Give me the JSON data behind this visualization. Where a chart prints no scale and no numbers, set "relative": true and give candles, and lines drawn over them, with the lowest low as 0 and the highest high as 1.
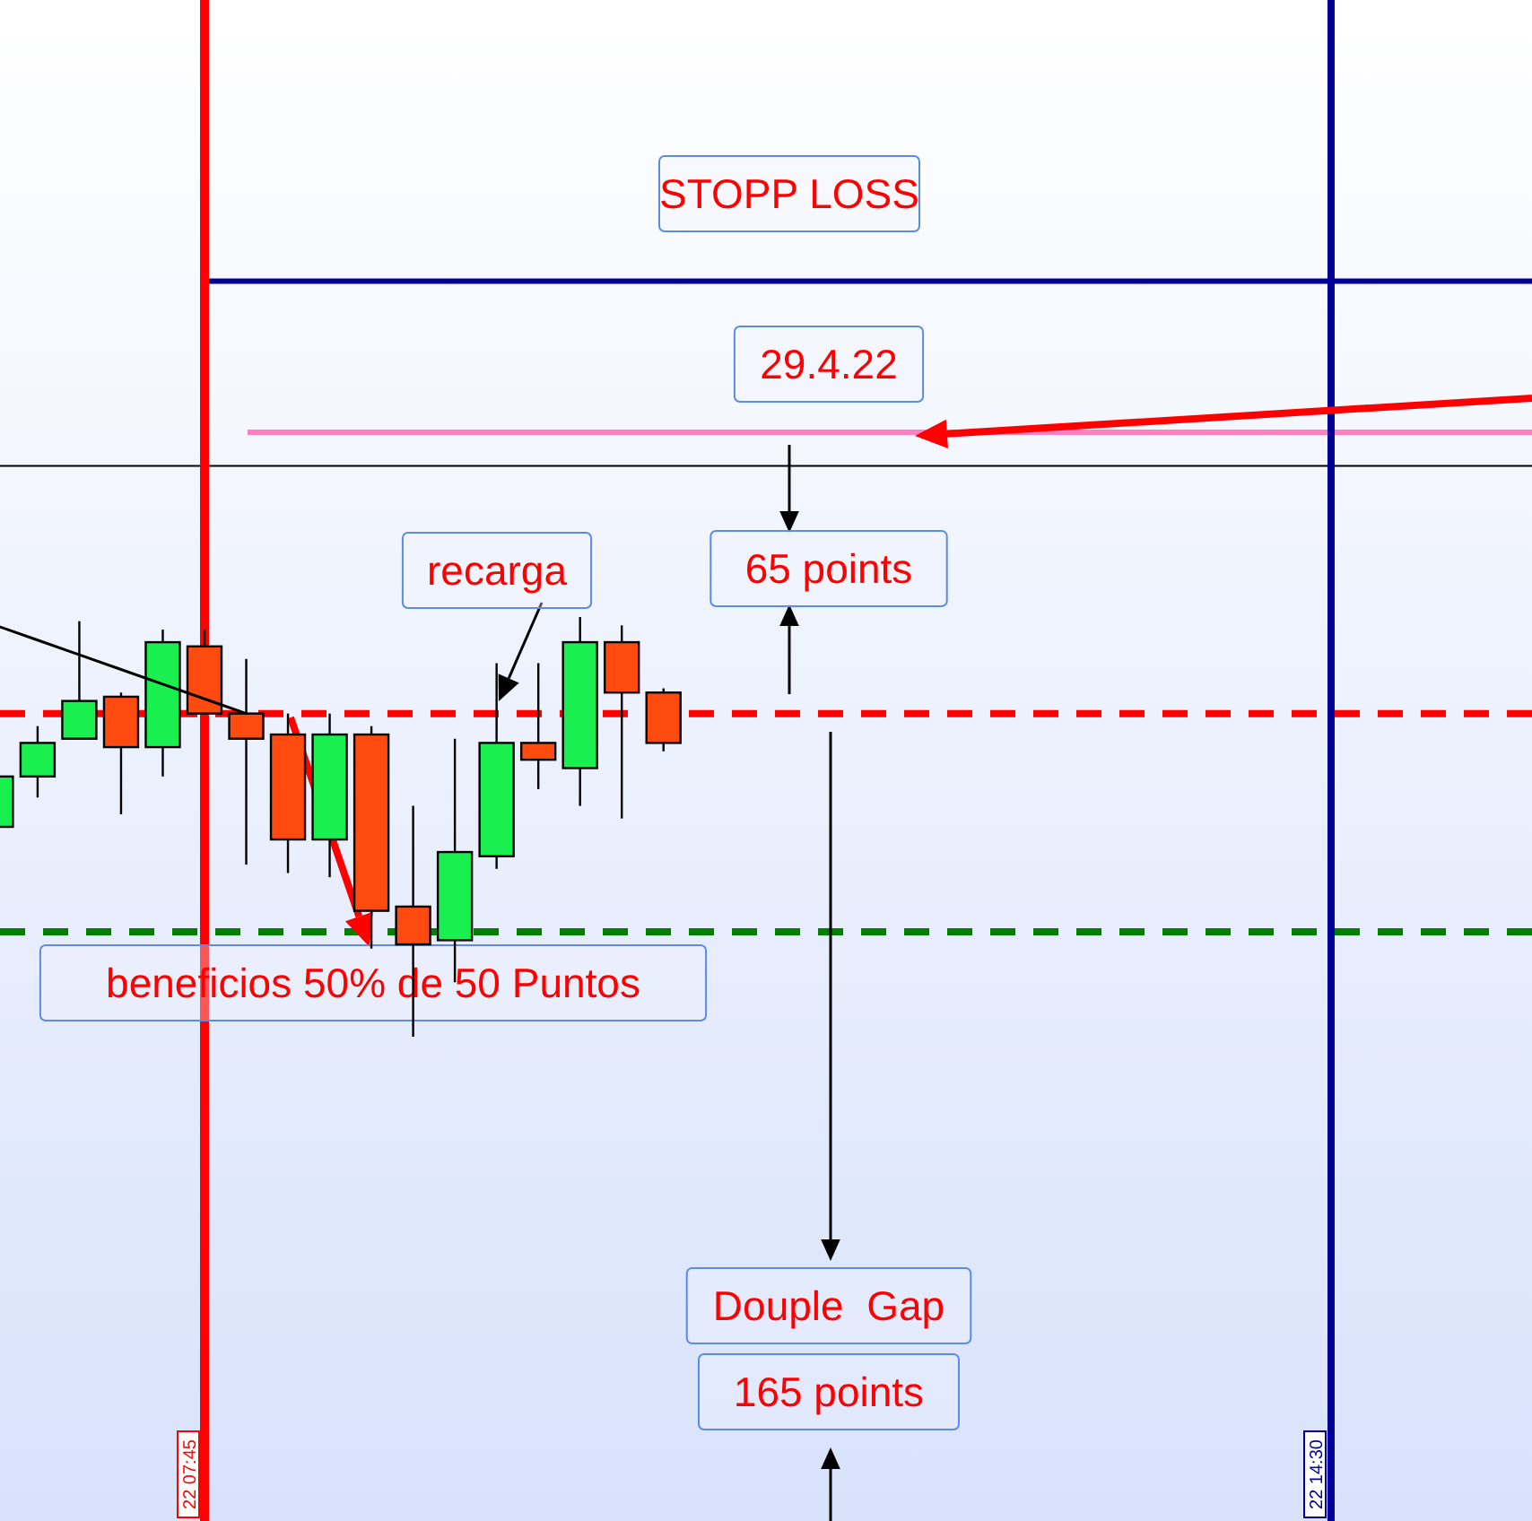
{
  "chart_data": {
    "type": "candlestick",
    "relative": true,
    "categories": [
      null,
      null,
      null,
      null,
      null,
      null,
      null,
      null,
      null,
      null,
      null,
      null,
      null,
      null,
      null,
      null,
      null
    ],
    "ohlc": [
      [
        0.5,
        0.62,
        0.5,
        0.62
      ],
      [
        0.62,
        0.74,
        0.57,
        0.7
      ],
      [
        0.71,
        0.99,
        0.71,
        0.8
      ],
      [
        0.81,
        0.82,
        0.53,
        0.69
      ],
      [
        0.69,
        0.97,
        0.62,
        0.94
      ],
      [
        0.93,
        0.97,
        0.77,
        0.77
      ],
      [
        0.77,
        0.9,
        0.41,
        0.71
      ],
      [
        0.72,
        0.77,
        0.39,
        0.47
      ],
      [
        0.47,
        0.77,
        0.38,
        0.72
      ],
      [
        0.72,
        0.74,
        0.21,
        0.3
      ],
      [
        0.31,
        0.55,
        0,
        0.22
      ],
      [
        0.23,
        0.71,
        0.13,
        0.44
      ],
      [
        0.43,
        0.89,
        0.4,
        0.7
      ],
      [
        0.7,
        0.89,
        0.59,
        0.66
      ],
      [
        0.64,
        1,
        0.55,
        0.94
      ],
      [
        0.94,
        0.98,
        0.52,
        0.82
      ],
      [
        0.82,
        0.83,
        0.68,
        0.7
      ]
    ],
    "colors": [
      "#19f050",
      "#19f050",
      "#19f050",
      "#ff4a10",
      "#19f050",
      "#ff4a10",
      "#ff4a10",
      "#ff4a10",
      "#19f050",
      "#ff4a10",
      "#ff4a10",
      "#19f050",
      "#19f050",
      "#ff4a10",
      "#19f050",
      "#ff4a10",
      "#ff4a10"
    ],
    "series": [
      {
        "type": "line",
        "color": "#000000",
        "values": [
          0.98,
          0.945,
          0.91,
          0.875,
          0.84,
          0.805,
          0.77,
          null,
          null,
          null,
          null,
          null,
          null,
          null,
          null,
          null,
          null
        ]
      }
    ],
    "ref_lines": [
      {
        "axis": "y",
        "value": 1.8,
        "color": "#000099"
      },
      {
        "axis": "y",
        "value": 1.44,
        "color": "#ff80c0"
      },
      {
        "axis": "y",
        "value": 1.36,
        "color": "#000000"
      },
      {
        "axis": "y",
        "value": 0.77,
        "color": "#ff0000",
        "line_style": "dashed"
      },
      {
        "axis": "y",
        "value": 0.25,
        "color": "#008000",
        "line_style": "dashed"
      }
    ],
    "annotations": [
      "STOPP LOSS",
      "29.4.22",
      "65 points",
      "recarga",
      "beneficios 50% de 50 Puntos",
      "Douple  Gap",
      "165 points",
      "22 07:45",
      "22 14:30"
    ]
  }
}
